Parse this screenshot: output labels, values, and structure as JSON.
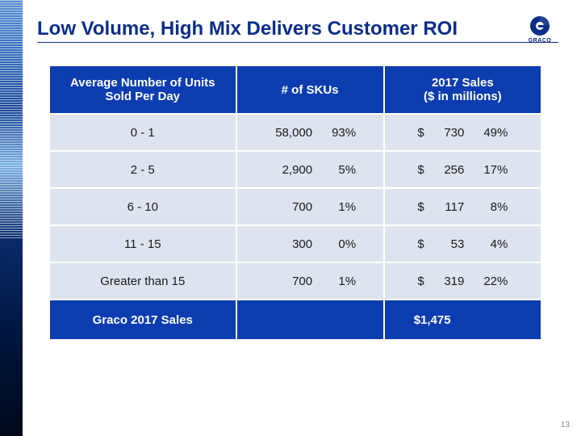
{
  "slide": {
    "title": "Low Volume, High Mix Delivers Customer ROI",
    "logo_label": "GRACO",
    "page_number": "13"
  },
  "colors": {
    "brand_blue": "#0b2e8a",
    "header_blue": "#0b3db0",
    "row_bg": "#dde4ef",
    "text": "#1a1a1a"
  },
  "table": {
    "type": "table",
    "headers": {
      "col1_line1": "Average Number of Units",
      "col1_line2": "Sold Per Day",
      "col2": "# of SKUs",
      "col3_line1": "2017 Sales",
      "col3_line2": "($ in millions)"
    },
    "rows": [
      {
        "range": "0 - 1",
        "skus": "58,000",
        "skus_pct": "93%",
        "sales": "730",
        "sales_pct": "49%"
      },
      {
        "range": "2 - 5",
        "skus": "2,900",
        "skus_pct": "5%",
        "sales": "256",
        "sales_pct": "17%"
      },
      {
        "range": "6 - 10",
        "skus": "700",
        "skus_pct": "1%",
        "sales": "117",
        "sales_pct": "8%"
      },
      {
        "range": "11 - 15",
        "skus": "300",
        "skus_pct": "0%",
        "sales": "53",
        "sales_pct": "4%"
      },
      {
        "range": "Greater than 15",
        "skus": "700",
        "skus_pct": "1%",
        "sales": "319",
        "sales_pct": "22%"
      }
    ],
    "footer": {
      "label": "Graco 2017 Sales",
      "total": "$1,475"
    }
  }
}
